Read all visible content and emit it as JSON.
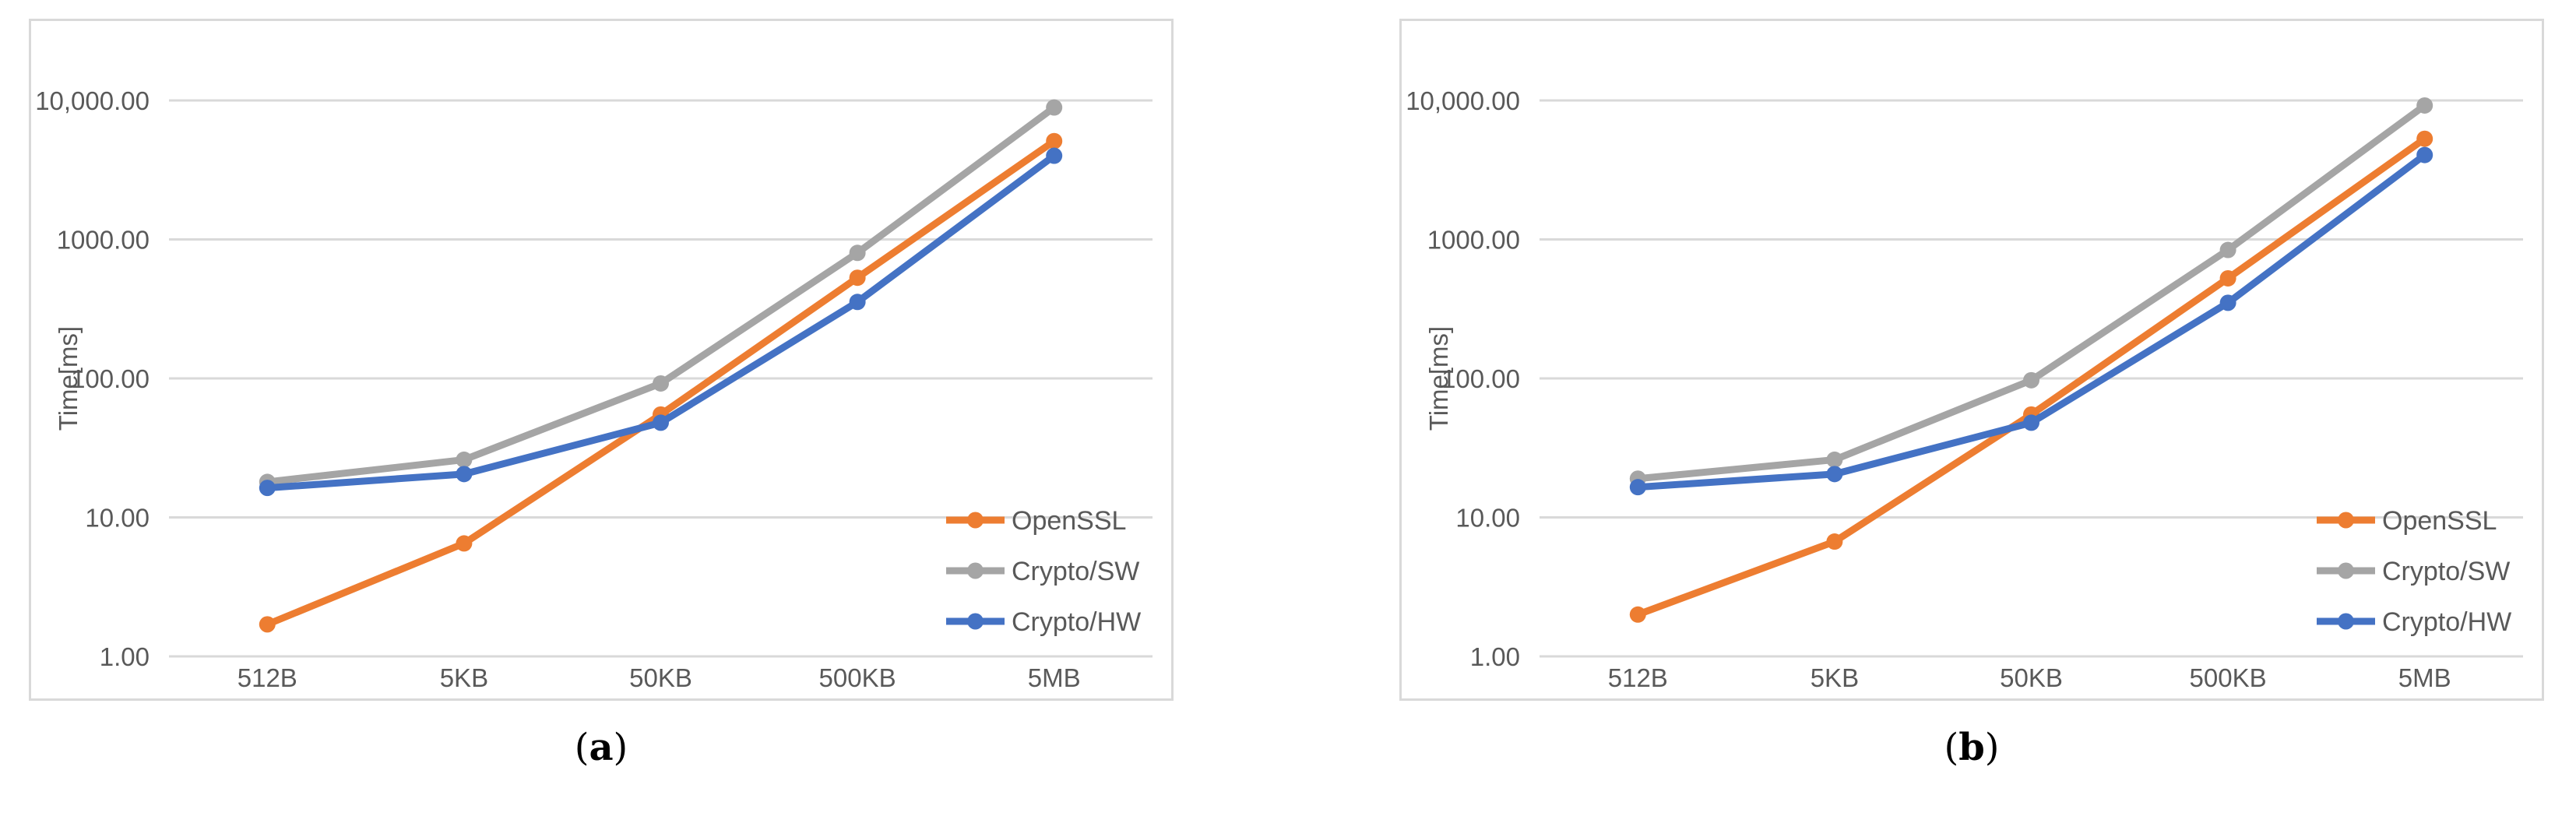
{
  "page": {
    "background": "#ffffff",
    "text_color": "#595959"
  },
  "chart_data": [
    {
      "type": "line",
      "caption": {
        "pre": "(",
        "letter": "a",
        "post": ")"
      },
      "ylabel": "Time[ms]",
      "log_scale_y": true,
      "ylim": [
        1,
        10000
      ],
      "grid": true,
      "legend_position": "inside-right",
      "ytick_labels": [
        "10,000.00",
        "1000.00",
        "100.00",
        "10.00",
        "1.00"
      ],
      "ytick_values": [
        10000,
        1000,
        100,
        10,
        1
      ],
      "categories": [
        "512B",
        "5KB",
        "50KB",
        "500KB",
        "5MB"
      ],
      "series": [
        {
          "name": "OpenSSL",
          "color": "#ED7D31",
          "values": [
            1.7,
            6.5,
            55,
            530,
            5100
          ]
        },
        {
          "name": "Crypto/SW",
          "color": "#A5A5A5",
          "values": [
            18,
            26,
            92,
            800,
            8900
          ]
        },
        {
          "name": "Crypto/HW",
          "color": "#4472C4",
          "values": [
            16.3,
            20.5,
            48,
            355,
            4000
          ]
        }
      ]
    },
    {
      "type": "line",
      "caption": {
        "pre": "(",
        "letter": "b",
        "post": ")"
      },
      "ylabel": "Time[ms]",
      "log_scale_y": true,
      "ylim": [
        1,
        10000
      ],
      "grid": true,
      "legend_position": "inside-right",
      "ytick_labels": [
        "10,000.00",
        "1000.00",
        "100.00",
        "10.00",
        "1.00"
      ],
      "ytick_values": [
        10000,
        1000,
        100,
        10,
        1
      ],
      "categories": [
        "512B",
        "5KB",
        "50KB",
        "500KB",
        "5MB"
      ],
      "series": [
        {
          "name": "OpenSSL",
          "color": "#ED7D31",
          "values": [
            2.0,
            6.7,
            55,
            525,
            5300
          ]
        },
        {
          "name": "Crypto/SW",
          "color": "#A5A5A5",
          "values": [
            19,
            26,
            97,
            840,
            9200
          ]
        },
        {
          "name": "Crypto/HW",
          "color": "#4472C4",
          "values": [
            16.5,
            20.5,
            48,
            350,
            4050
          ]
        }
      ]
    }
  ],
  "style": {
    "grid_color": "#D9D9D9",
    "border_color": "#D9D9D9",
    "label_color": "#595959"
  }
}
